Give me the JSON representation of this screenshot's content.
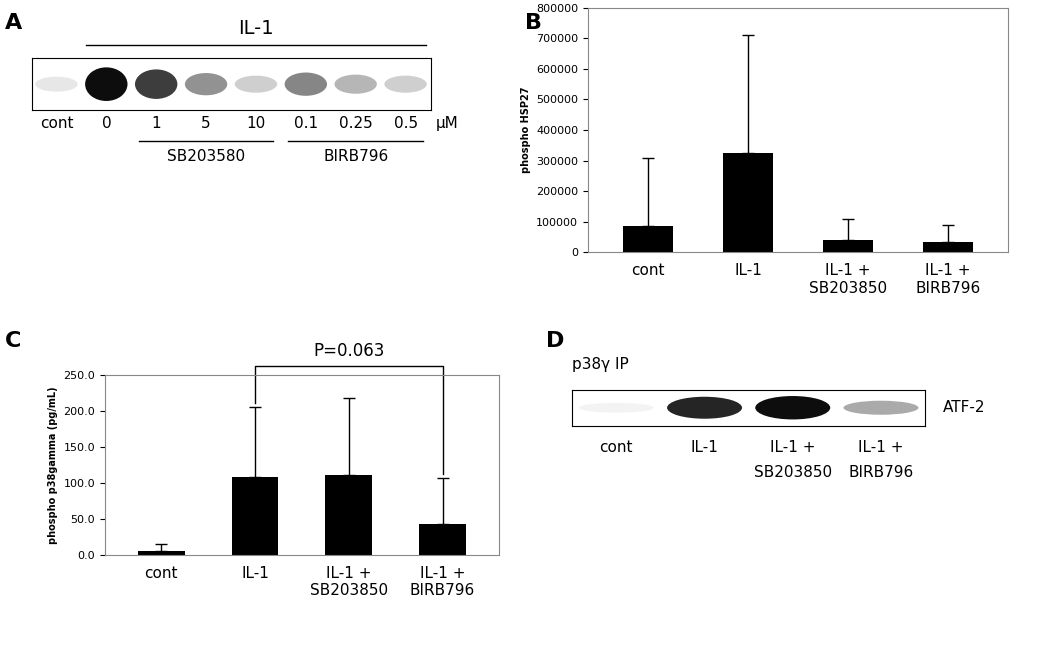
{
  "chart_data": [
    {
      "type": "blot",
      "panel": "A",
      "treatment": "IL-1",
      "treatment_lanes": [
        "0",
        "1",
        "5",
        "10",
        "0.1",
        "0.25",
        "0.5"
      ],
      "lanes": [
        "cont",
        "0",
        "1",
        "5",
        "10",
        "0.1",
        "0.25",
        "0.5"
      ],
      "unit": "μM",
      "band_intensity": [
        0.1,
        1.0,
        0.8,
        0.45,
        0.2,
        0.5,
        0.3,
        0.2
      ],
      "groups": [
        {
          "label": "SB203580",
          "lanes": [
            "1",
            "5",
            "10"
          ]
        },
        {
          "label": "BIRB796",
          "lanes": [
            "0.1",
            "0.25",
            "0.5"
          ]
        }
      ]
    },
    {
      "type": "bar",
      "panel": "B",
      "y_label": "phospho HSP27",
      "categories": [
        "cont",
        "IL-1",
        "IL-1 +\nSB203850",
        "IL-1 +\nBIRB796"
      ],
      "values": [
        85000,
        325000,
        40000,
        32000
      ],
      "error": [
        225000,
        385000,
        68000,
        56000
      ],
      "color": "#000000",
      "ylim": [
        0,
        800000
      ],
      "yticks": [
        0,
        100000,
        200000,
        300000,
        400000,
        500000,
        600000,
        700000,
        800000
      ],
      "grid": false
    },
    {
      "type": "bar",
      "panel": "C",
      "y_label": "phospho p38gamma (pg/mL)",
      "categories": [
        "cont",
        "IL-1",
        "IL-1 +\nSB203850",
        "IL-1 +\nBIRB796"
      ],
      "values": [
        5,
        108,
        111,
        43
      ],
      "error": [
        10,
        97,
        106,
        64
      ],
      "color": "#000000",
      "ylim": [
        0,
        250
      ],
      "yticks": [
        {
          "value": 0,
          "label": "0.0"
        },
        {
          "value": 50,
          "label": "50.0"
        },
        {
          "value": 100,
          "label": "100.0"
        },
        {
          "value": 150,
          "label": "150.0"
        },
        {
          "value": 200,
          "label": "200.0"
        },
        {
          "value": 250,
          "label": "250.0"
        }
      ],
      "grid": false,
      "annotation": {
        "text": "P=0.063",
        "between": [
          "IL-1",
          "IL-1 +\nBIRB796"
        ]
      }
    },
    {
      "type": "blot",
      "panel": "D",
      "title": "p38γ IP",
      "band_label": "ATF-2",
      "lanes": [
        "cont",
        "IL-1",
        "IL-1 +\nSB203850",
        "IL-1 +\nBIRB796"
      ],
      "band_intensity": [
        0.05,
        0.9,
        1.0,
        0.35
      ]
    }
  ]
}
